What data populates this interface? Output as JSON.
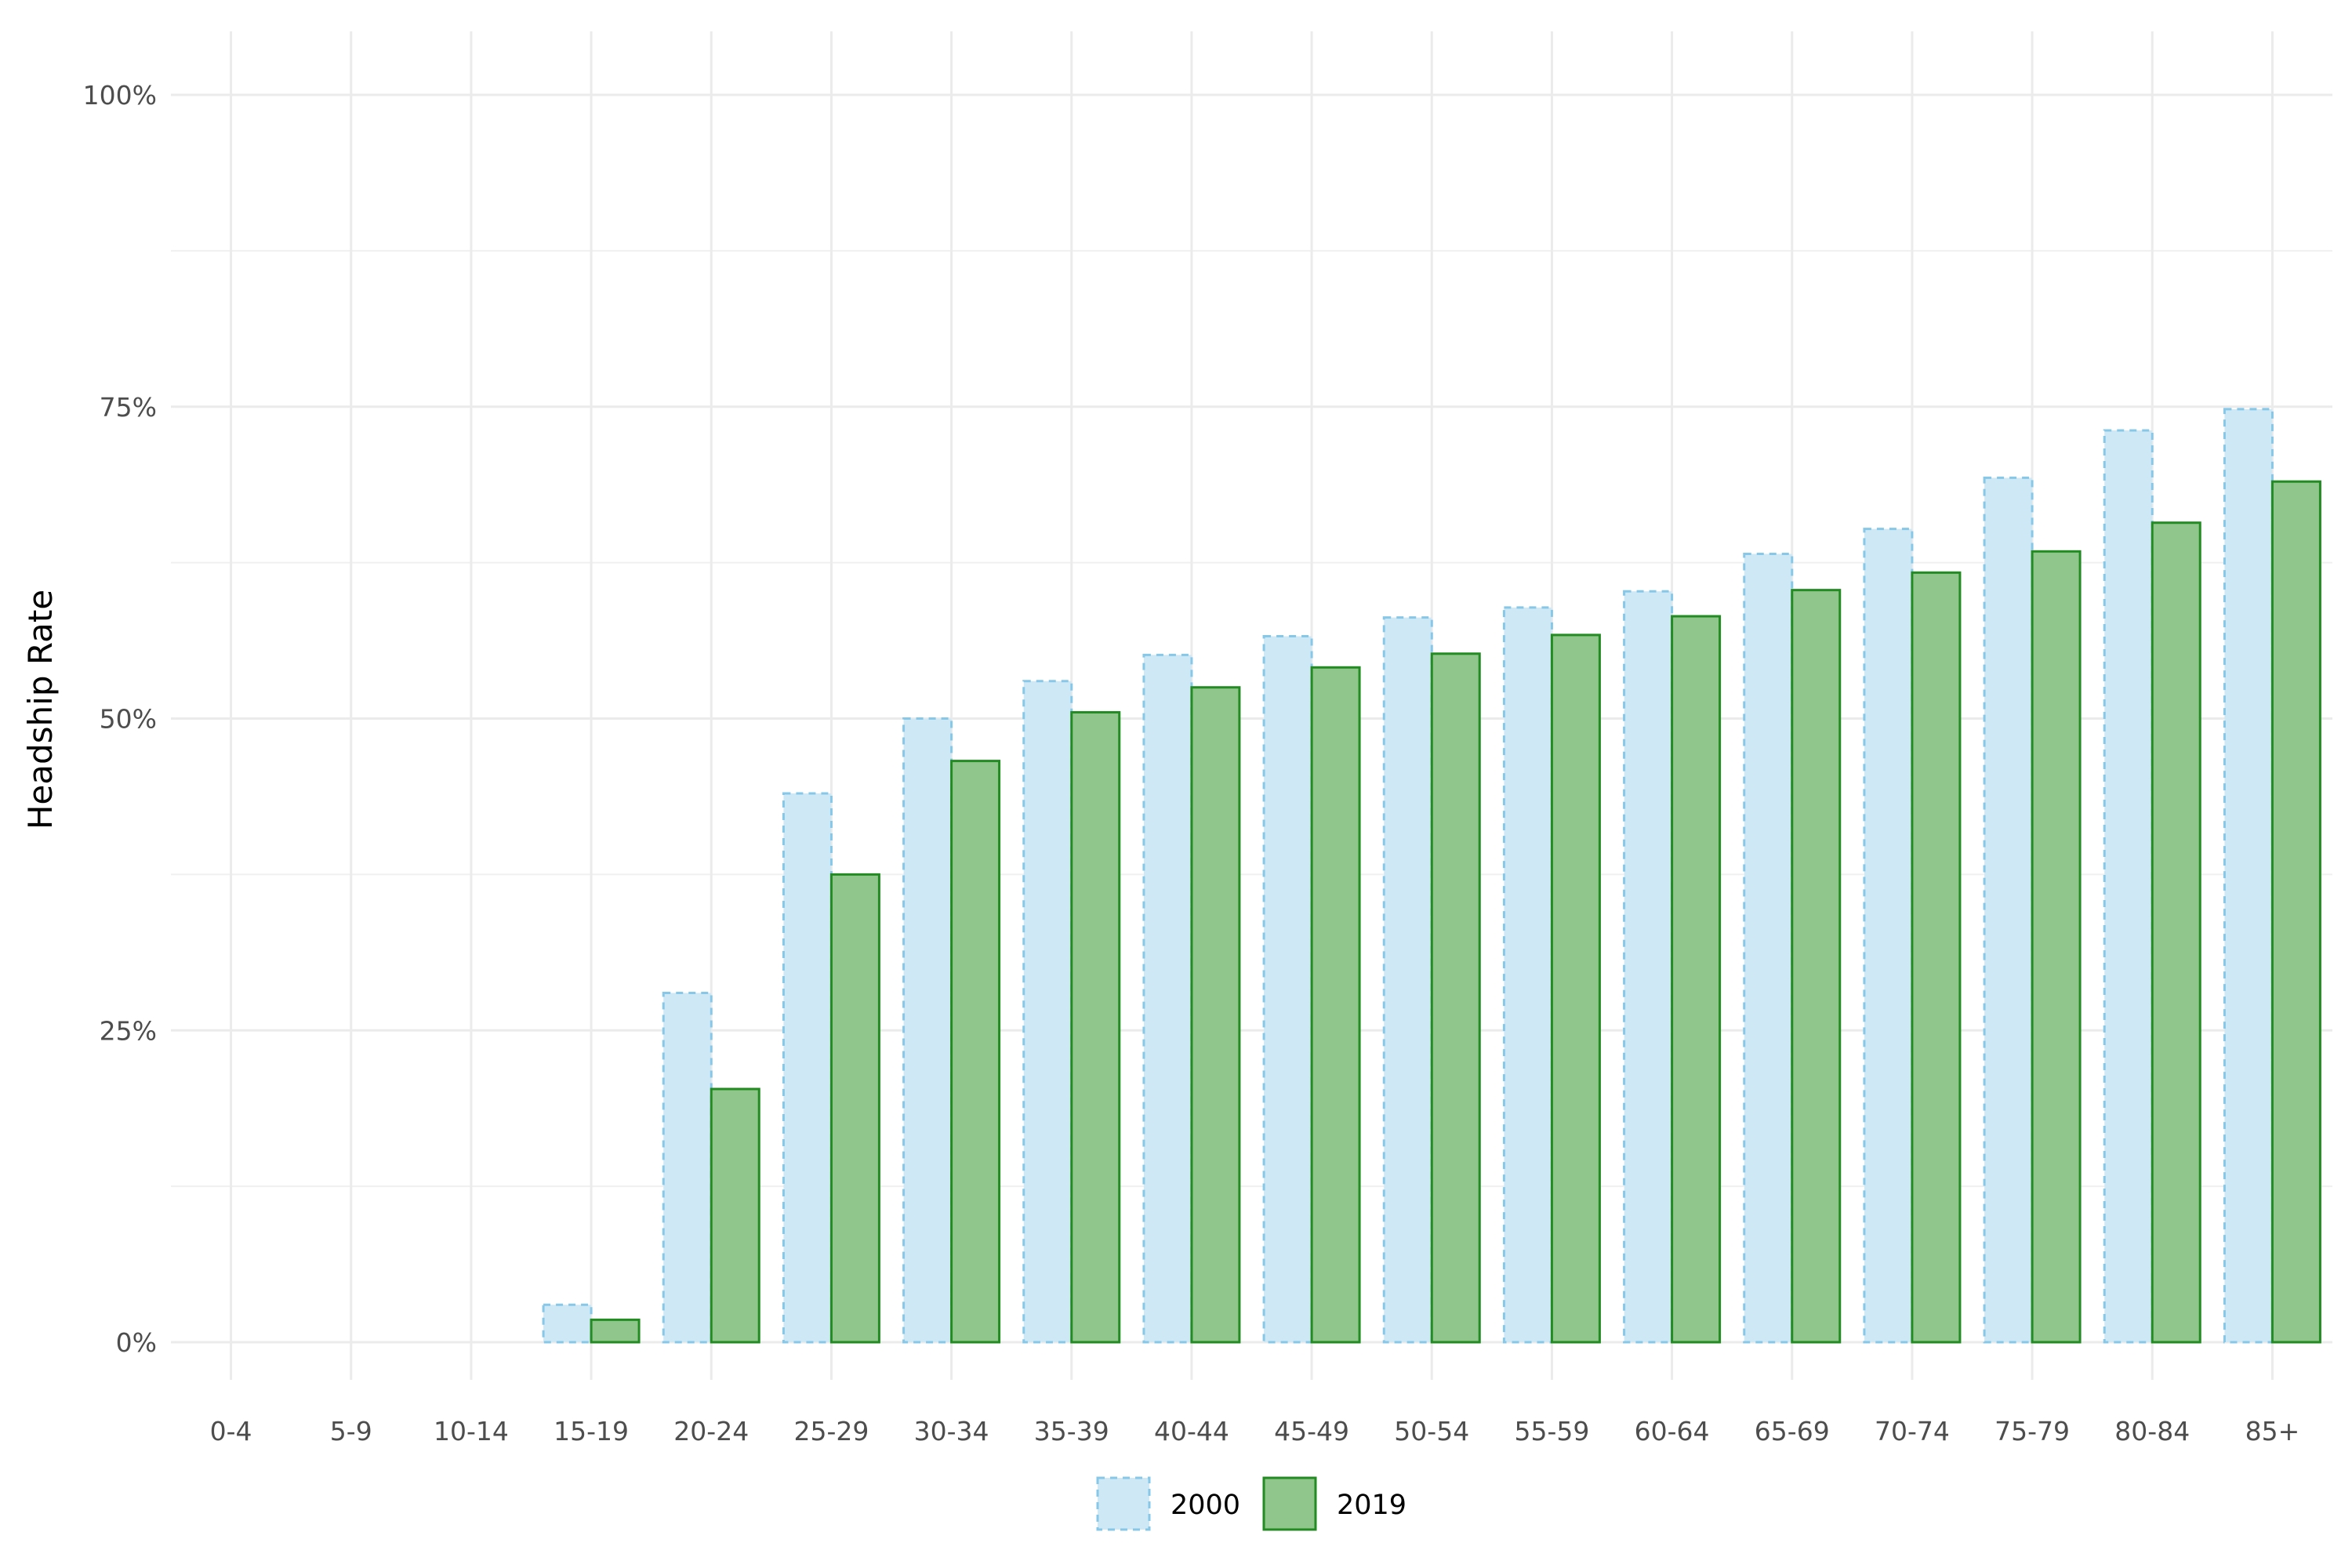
{
  "chart_data": {
    "type": "bar",
    "ylabel": "Headship Rate",
    "xlabel": "",
    "title": "",
    "ylim": [
      0,
      1
    ],
    "y_ticks": [
      0,
      0.25,
      0.5,
      0.75,
      1.0
    ],
    "y_tick_labels": [
      "0%",
      "25%",
      "50%",
      "75%",
      "100%"
    ],
    "grid": true,
    "legend_position": "bottom",
    "categories": [
      "0-4",
      "5-9",
      "10-14",
      "15-19",
      "20-24",
      "25-29",
      "30-34",
      "35-39",
      "40-44",
      "45-49",
      "50-54",
      "55-59",
      "60-64",
      "65-69",
      "70-74",
      "75-79",
      "80-84",
      "85+"
    ],
    "series": [
      {
        "name": "2000",
        "fill": "#cfe8f5",
        "stroke": "#87c8e8",
        "dashed": true,
        "values": [
          0.0,
          0.0,
          0.0,
          0.03,
          0.28,
          0.44,
          0.5,
          0.53,
          0.551,
          0.566,
          0.581,
          0.589,
          0.602,
          0.632,
          0.652,
          0.693,
          0.731,
          0.748
        ]
      },
      {
        "name": "2019",
        "fill": "#90c58b",
        "stroke": "#228b22",
        "dashed": false,
        "values": [
          0.0,
          0.0,
          0.0,
          0.018,
          0.203,
          0.375,
          0.466,
          0.505,
          0.525,
          0.541,
          0.552,
          0.567,
          0.582,
          0.603,
          0.617,
          0.634,
          0.657,
          0.69
        ]
      }
    ]
  }
}
